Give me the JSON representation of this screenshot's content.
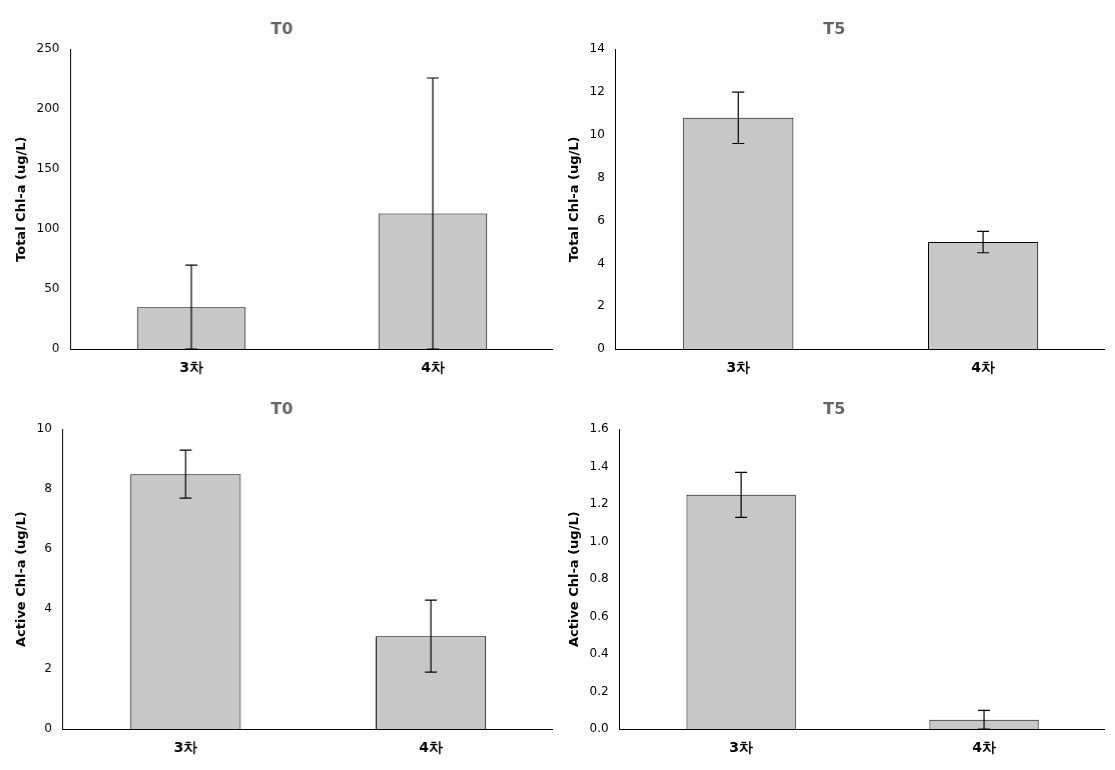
{
  "chart_data": [
    {
      "type": "bar",
      "title": "T0",
      "ylabel": "Total Chl-a (ug/L)",
      "categories": [
        "3차",
        "4차"
      ],
      "values": [
        35.0,
        113.0
      ],
      "errors": [
        35.0,
        113.0
      ],
      "color": "#c8c8c8",
      "ylim": [
        0,
        250
      ],
      "yticks": [
        0,
        50,
        100,
        150,
        200,
        250
      ],
      "grid": false
    },
    {
      "type": "bar",
      "title": "T5",
      "ylabel": "Total Chl-a (ug/L)",
      "categories": [
        "3차",
        "4차"
      ],
      "values": [
        10.8,
        5.0
      ],
      "errors": [
        1.2,
        0.5
      ],
      "color": "#c8c8c8",
      "ylim": [
        0,
        14
      ],
      "yticks": [
        0,
        2,
        4,
        6,
        8,
        10,
        12,
        14
      ],
      "grid": false
    },
    {
      "type": "bar",
      "title": "T0",
      "ylabel": "Active Chl-a (ug/L)",
      "categories": [
        "3차",
        "4차"
      ],
      "values": [
        8.5,
        3.1
      ],
      "errors": [
        0.8,
        1.2
      ],
      "color": "#c8c8c8",
      "ylim": [
        0,
        10
      ],
      "yticks": [
        0,
        2,
        4,
        6,
        8,
        10
      ],
      "grid": false
    },
    {
      "type": "bar",
      "title": "T5",
      "ylabel": "Active Chl-a (ug/L)",
      "categories": [
        "3차",
        "4차"
      ],
      "values": [
        1.25,
        0.05
      ],
      "errors": [
        0.12,
        0.05
      ],
      "color": "#c8c8c8",
      "ylim": [
        0,
        1.6
      ],
      "yticks": [
        {
          "value": 0,
          "label": "0.0"
        },
        0.2,
        0.4,
        0.6,
        0.8,
        {
          "value": 1,
          "label": "1.0"
        },
        1.2,
        1.4,
        1.6
      ],
      "grid": false
    }
  ]
}
